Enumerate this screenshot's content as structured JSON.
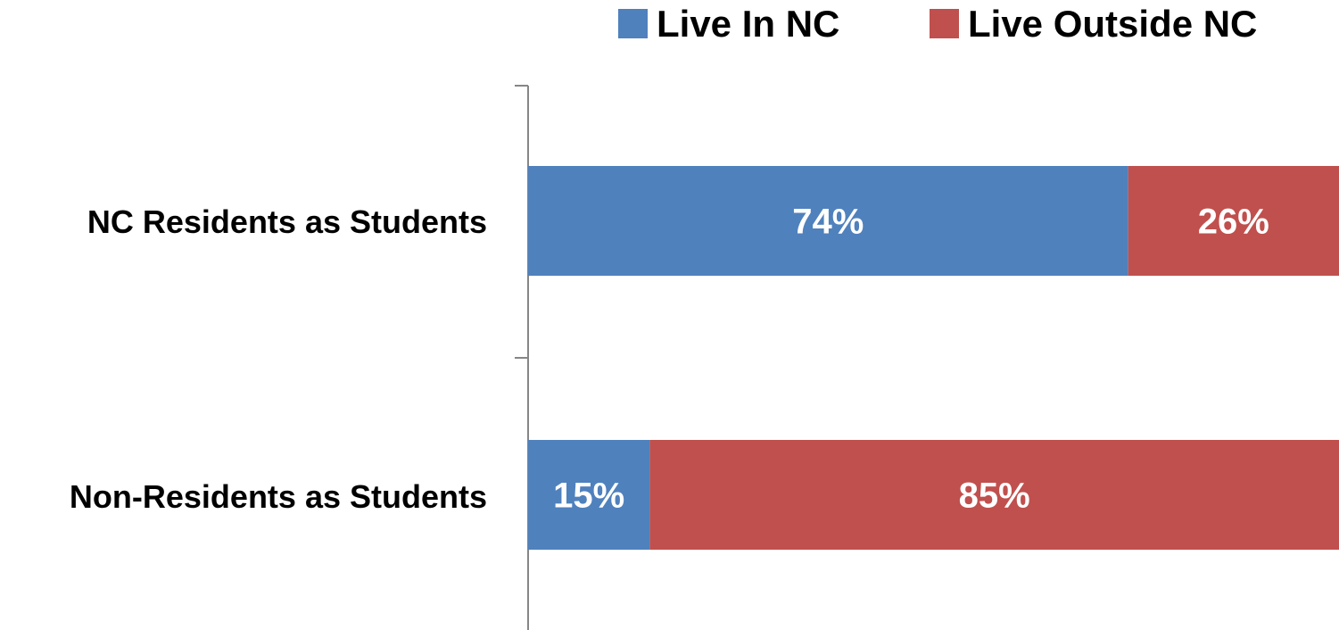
{
  "chart_data": {
    "type": "bar",
    "orientation": "horizontal",
    "stacked": true,
    "percent_stacked": true,
    "categories": [
      "NC Residents as Students",
      "Non-Residents as Students"
    ],
    "series": [
      {
        "name": "Live In NC",
        "values": [
          74,
          15
        ],
        "color": "#4F81BD"
      },
      {
        "name": "Live Outside NC",
        "values": [
          26,
          85
        ],
        "color": "#C0504D"
      }
    ],
    "data_labels": [
      [
        "74%",
        "15%"
      ],
      [
        "26%",
        "85%"
      ]
    ],
    "xlim": [
      0,
      100
    ],
    "grid": false,
    "legend": "top-right"
  }
}
